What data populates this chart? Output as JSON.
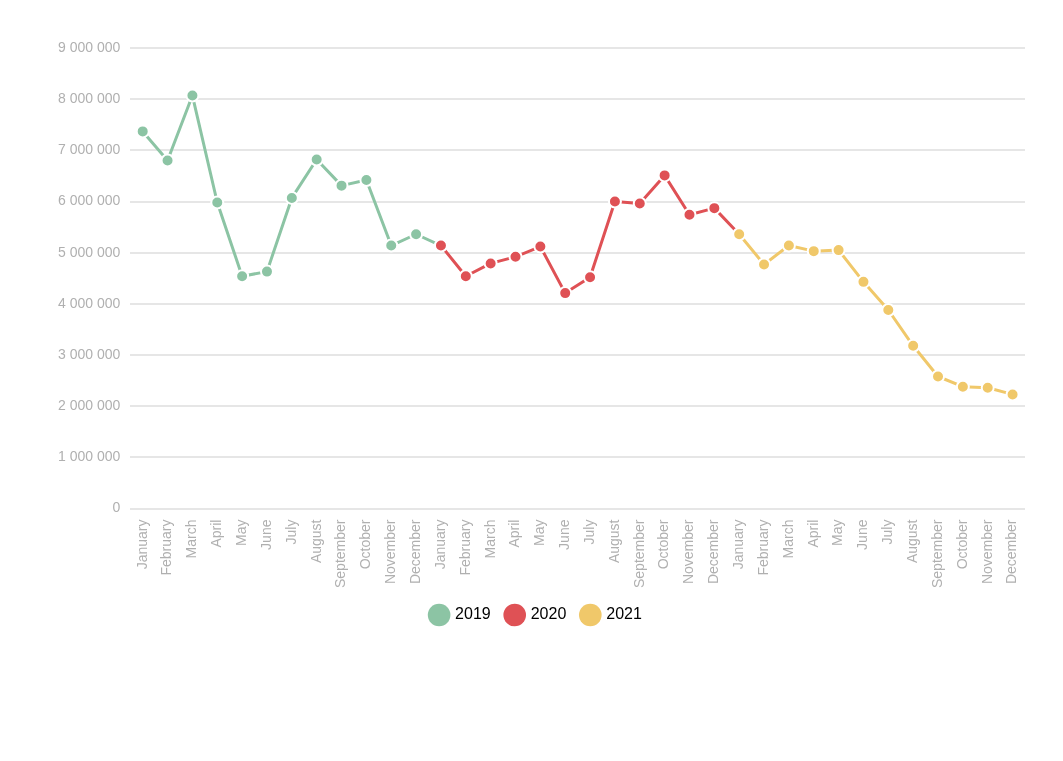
{
  "chart_data": {
    "type": "line",
    "categories": [
      "January",
      "February",
      "March",
      "April",
      "May",
      "June",
      "July",
      "August",
      "September",
      "October",
      "November",
      "December",
      "January",
      "February",
      "March",
      "April",
      "May",
      "June",
      "July",
      "August",
      "September",
      "October",
      "November",
      "December",
      "January",
      "February",
      "March",
      "April",
      "May",
      "June",
      "July",
      "August",
      "September",
      "October",
      "November",
      "December"
    ],
    "series": [
      {
        "name": "2019",
        "color": "#8cc4a4",
        "values": [
          7370000,
          6800000,
          8070000,
          5980000,
          4540000,
          4630000,
          6070000,
          6820000,
          6310000,
          6420000,
          5140000,
          5360000,
          5140000,
          null,
          null,
          null,
          null,
          null,
          null,
          null,
          null,
          null,
          null,
          null,
          null,
          null,
          null,
          null,
          null,
          null,
          null,
          null,
          null,
          null,
          null,
          null
        ]
      },
      {
        "name": "2020",
        "color": "#df5155",
        "values": [
          null,
          null,
          null,
          null,
          null,
          null,
          null,
          null,
          null,
          null,
          null,
          null,
          5140000,
          4540000,
          4790000,
          4920000,
          5120000,
          4210000,
          4520000,
          6000000,
          5960000,
          6510000,
          5740000,
          5870000,
          5360000,
          null,
          null,
          null,
          null,
          null,
          null,
          null,
          null,
          null,
          null,
          null
        ]
      },
      {
        "name": "2021",
        "color": "#f0c86a",
        "values": [
          null,
          null,
          null,
          null,
          null,
          null,
          null,
          null,
          null,
          null,
          null,
          null,
          null,
          null,
          null,
          null,
          null,
          null,
          null,
          null,
          null,
          null,
          null,
          null,
          5360000,
          4770000,
          5140000,
          5030000,
          5050000,
          4430000,
          3880000,
          3180000,
          2580000,
          2380000,
          2360000,
          2230000
        ]
      }
    ],
    "ylim": [
      0,
      9000000
    ],
    "yticks": [
      {
        "value": 0,
        "label": "0"
      },
      {
        "value": 1000000,
        "label": "1 000 000"
      },
      {
        "value": 2000000,
        "label": "2 000 000"
      },
      {
        "value": 3000000,
        "label": "3 000 000"
      },
      {
        "value": 4000000,
        "label": "4 000 000"
      },
      {
        "value": 5000000,
        "label": "5 000 000"
      },
      {
        "value": 6000000,
        "label": "6 000 000"
      },
      {
        "value": 7000000,
        "label": "7 000 000"
      },
      {
        "value": 8000000,
        "label": "8 000 000"
      },
      {
        "value": 9000000,
        "label": "9 000 000"
      }
    ],
    "grid": "y",
    "legend": "bottom",
    "marker": "circle",
    "line_style": "solid"
  }
}
